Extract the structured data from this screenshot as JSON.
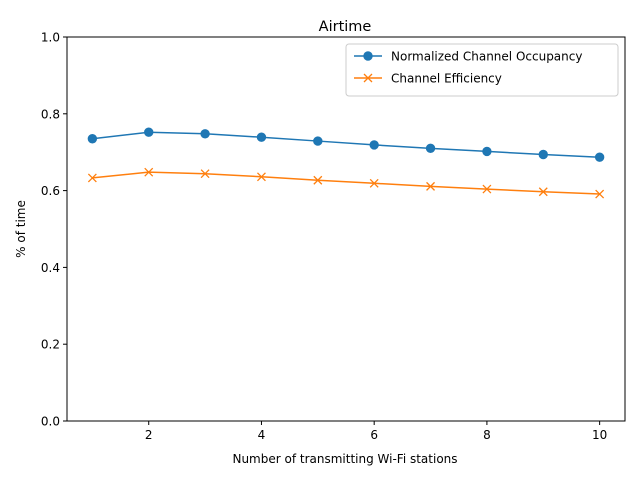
{
  "chart_data": {
    "type": "line",
    "title": "Airtime",
    "xlabel": "Number of transmitting Wi-Fi stations",
    "ylabel": "% of time",
    "xlim": [
      0.55,
      10.45
    ],
    "ylim": [
      0,
      1.0
    ],
    "xticks": [
      2,
      4,
      6,
      8,
      10
    ],
    "yticks": [
      0.0,
      0.2,
      0.4,
      0.6,
      0.8,
      1.0
    ],
    "xtick_labels": [
      "2",
      "4",
      "6",
      "8",
      "10"
    ],
    "ytick_labels": [
      "0.0",
      "0.2",
      "0.4",
      "0.6",
      "0.8",
      "1.0"
    ],
    "grid": false,
    "legend_position": "top-right",
    "x": [
      1,
      2,
      3,
      4,
      5,
      6,
      7,
      8,
      9,
      10
    ],
    "series": [
      {
        "name": "Normalized Channel Occupancy",
        "values": [
          0.735,
          0.752,
          0.748,
          0.739,
          0.729,
          0.719,
          0.71,
          0.702,
          0.694,
          0.687
        ],
        "color": "#1f77b4",
        "marker": "circle"
      },
      {
        "name": "Channel Efficiency",
        "values": [
          0.633,
          0.648,
          0.644,
          0.636,
          0.627,
          0.619,
          0.611,
          0.604,
          0.597,
          0.591
        ],
        "color": "#ff7f0e",
        "marker": "x"
      }
    ]
  }
}
